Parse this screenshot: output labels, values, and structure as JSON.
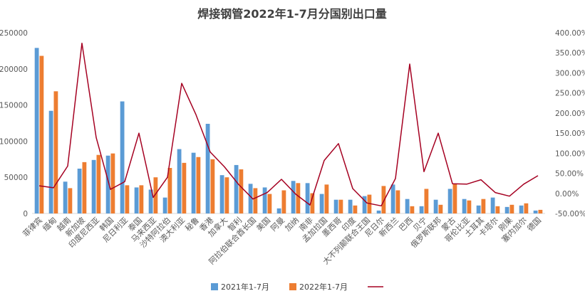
{
  "chart_data": {
    "type": "bar",
    "title": "焊接钢管2022年1-7月分国别出口量",
    "categories": [
      "菲律宾",
      "缅甸",
      "越南",
      "新加坡",
      "印度尼西亚",
      "韩国",
      "尼日利亚",
      "泰国",
      "马来西亚",
      "沙特阿拉伯",
      "澳大利亚",
      "秘鲁",
      "香港",
      "加拿大",
      "智利",
      "阿拉伯联合酋长国",
      "美国",
      "阿曼",
      "加纳",
      "南非",
      "孟加拉国",
      "墨西哥",
      "印度",
      "大不列颠联合王国",
      "尼日尔",
      "新西兰",
      "巴西",
      "贝宁",
      "俄罗斯联邦",
      "蒙古",
      "哥伦比亚",
      "土耳其",
      "卡塔尔",
      "刚果",
      "塞内加尔",
      "德国"
    ],
    "series": [
      {
        "name": "2021年1-7月",
        "color": "#5B9BD5",
        "axis": "left",
        "values": [
          229000,
          142000,
          44000,
          62000,
          74000,
          80000,
          155000,
          36000,
          33000,
          22000,
          89000,
          84000,
          124000,
          53000,
          67000,
          41000,
          36000,
          7000,
          45000,
          42000,
          27000,
          19000,
          19000,
          24000,
          4000,
          40000,
          20000,
          10000,
          19000,
          34000,
          20000,
          11000,
          22000,
          9000,
          11000,
          4000
        ]
      },
      {
        "name": "2022年1-7月",
        "color": "#ED7D31",
        "axis": "left",
        "values": [
          218000,
          169000,
          35000,
          71000,
          81000,
          83000,
          39000,
          39000,
          50000,
          63000,
          70000,
          78000,
          75000,
          50000,
          61000,
          35000,
          27000,
          32000,
          42000,
          28000,
          40000,
          19000,
          11000,
          26000,
          38000,
          32000,
          10000,
          34000,
          12000,
          41000,
          18000,
          20000,
          10000,
          12000,
          14000,
          5000
        ]
      },
      {
        "name": "",
        "color": "#A50021",
        "axis": "right",
        "type": "line",
        "values": [
          19,
          14,
          68,
          374,
          139,
          10,
          29,
          150,
          -10,
          40,
          274,
          196,
          103,
          66,
          22,
          -14,
          2,
          35,
          -2,
          -29,
          82,
          124,
          12,
          -24,
          -31,
          37,
          322,
          54,
          150,
          24,
          23,
          34,
          2,
          -7,
          23,
          44
        ]
      }
    ],
    "left_axis": {
      "ylim": [
        0,
        250000
      ],
      "ticks": [
        "0",
        "50000",
        "100000",
        "150000",
        "200000",
        "250000"
      ]
    },
    "right_axis": {
      "ylim": [
        -50,
        400
      ],
      "ticks": [
        "-50.00%",
        "0.00%",
        "50.00%",
        "100.00%",
        "150.00%",
        "200.00%",
        "250.00%",
        "300.00%",
        "350.00%",
        "400.00%"
      ]
    },
    "grid": false,
    "legend_position": "bottom"
  }
}
